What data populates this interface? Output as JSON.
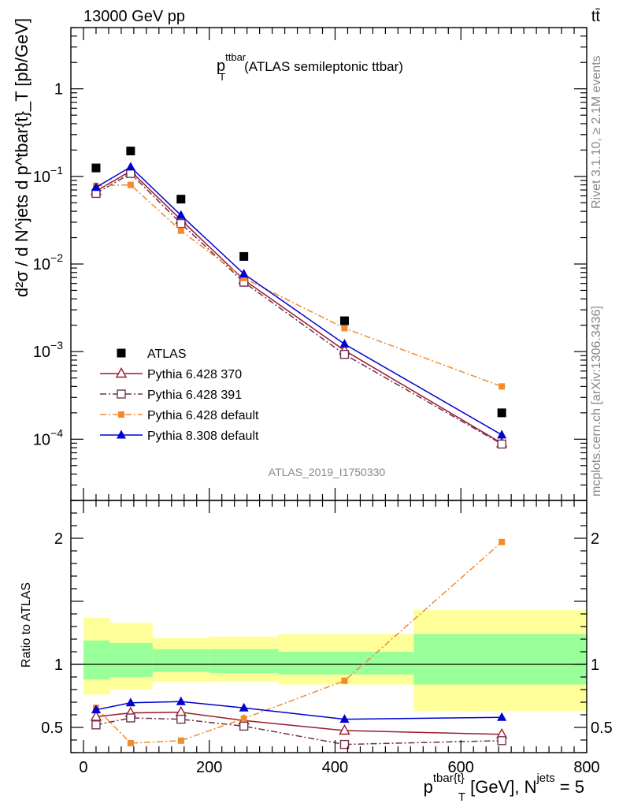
{
  "header": {
    "energy_label": "13000 GeV pp",
    "process_label": "tt̄"
  },
  "side_labels": {
    "rivet": "Rivet 3.1.10, ≥ 2.1M events",
    "mcplots": "mcplots.cern.ch [arXiv:1306.3436]"
  },
  "analysis_id": "ATLAS_2019_I1750330",
  "chart_data": [
    {
      "type": "scatter",
      "panel": "main",
      "title_main": "p",
      "title_sup": "ttbar",
      "title_sub": "T",
      "title_rest": "(ATLAS semileptonic ttbar)",
      "ylabel": "d²σ / d N^jets d p^tbar{t}_T [pb/GeV]",
      "y_scale": "log",
      "ylim": [
        2e-05,
        5
      ],
      "xlim": [
        -20,
        800
      ],
      "y_ticks": [
        {
          "value": 0.0001,
          "base": "10",
          "exp": "−4"
        },
        {
          "value": 0.001,
          "base": "10",
          "exp": "−3"
        },
        {
          "value": 0.01,
          "base": "10",
          "exp": "−2"
        },
        {
          "value": 0.1,
          "base": "10",
          "exp": "−1"
        },
        {
          "value": 1,
          "base": "1",
          "exp": ""
        }
      ],
      "x": [
        20,
        75,
        155,
        255,
        415,
        665
      ],
      "series": [
        {
          "name": "ATLAS",
          "color": "#000000",
          "marker": "square",
          "line": "none",
          "values": [
            0.125,
            0.195,
            0.055,
            0.0122,
            0.00225,
            0.0002
          ]
        },
        {
          "name": "Pythia 6.428 370",
          "color": "#9b1b2e",
          "marker": "triangle-open",
          "line": "solid",
          "values": [
            0.068,
            0.115,
            0.032,
            0.0066,
            0.00103,
            9e-05
          ]
        },
        {
          "name": "Pythia 6.428 391",
          "color": "#6e3349",
          "marker": "square-open",
          "line": "dashdot",
          "values": [
            0.064,
            0.108,
            0.029,
            0.0062,
            0.00093,
            8.8e-05
          ]
        },
        {
          "name": "Pythia 6.428 default",
          "color": "#f28a30",
          "marker": "square-small",
          "line": "dashdot",
          "values": [
            0.078,
            0.08,
            0.024,
            0.0069,
            0.00185,
            0.0004
          ]
        },
        {
          "name": "Pythia 8.308 default",
          "color": "#0000d0",
          "marker": "triangle",
          "line": "solid",
          "values": [
            0.075,
            0.128,
            0.036,
            0.0077,
            0.00122,
            0.000112
          ]
        }
      ],
      "legend_position": "bottom-left"
    },
    {
      "type": "scatter",
      "panel": "ratio",
      "ylabel": "Ratio to ATLAS",
      "xlabel_main": "p",
      "xlabel_sup": "tbar{t}",
      "xlabel_sub": "T",
      "xlabel_rest": "[GeV], N",
      "xlabel_sup2": "jets",
      "xlabel_tail": "= 5",
      "ylim": [
        0.3,
        2.3
      ],
      "xlim": [
        -20,
        800
      ],
      "x_ticks": [
        "0",
        "200",
        "400",
        "600",
        "800"
      ],
      "y_ticks": [
        "0.5",
        "1",
        "2"
      ],
      "band_edges": [
        0,
        42,
        110,
        200,
        310,
        525,
        800
      ],
      "band_yellow": [
        [
          0.76,
          1.37
        ],
        [
          0.8,
          1.33
        ],
        [
          0.86,
          1.21
        ],
        [
          0.86,
          1.22
        ],
        [
          0.84,
          1.24
        ],
        [
          0.63,
          1.43
        ],
        [
          0.63,
          1.43
        ]
      ],
      "band_green": [
        [
          0.88,
          1.19
        ],
        [
          0.9,
          1.17
        ],
        [
          0.94,
          1.12
        ],
        [
          0.93,
          1.12
        ],
        [
          0.92,
          1.1
        ],
        [
          0.84,
          1.24
        ],
        [
          0.84,
          1.24
        ]
      ],
      "x": [
        20,
        75,
        155,
        255,
        415,
        665
      ],
      "series": [
        {
          "name": "Pythia 6.428 370",
          "color": "#9b1b2e",
          "marker": "triangle-open",
          "line": "solid",
          "values": [
            0.585,
            0.615,
            0.62,
            0.555,
            0.475,
            0.445
          ]
        },
        {
          "name": "Pythia 6.428 391",
          "color": "#6e3349",
          "marker": "square-open",
          "line": "dashdot",
          "values": [
            0.52,
            0.575,
            0.565,
            0.51,
            0.365,
            0.395
          ]
        },
        {
          "name": "Pythia 6.428 default",
          "color": "#f28a30",
          "marker": "square-small",
          "line": "dashdot",
          "values": [
            0.655,
            0.375,
            0.395,
            0.57,
            0.87,
            1.97
          ]
        },
        {
          "name": "Pythia 8.308 default",
          "color": "#0000d0",
          "marker": "triangle",
          "line": "solid",
          "values": [
            0.64,
            0.695,
            0.705,
            0.655,
            0.565,
            0.58
          ]
        }
      ]
    }
  ]
}
